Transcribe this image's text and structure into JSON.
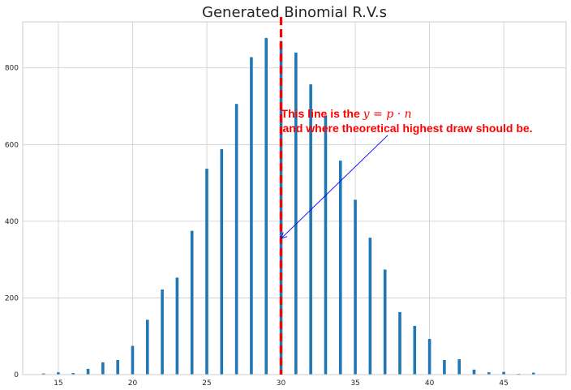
{
  "chart_data": {
    "type": "bar",
    "title": "Generated Binomial R.V.s",
    "xlabel": "",
    "ylabel": "",
    "xlim": [
      12.6,
      49.2
    ],
    "ylim": [
      0,
      920
    ],
    "x_ticks": [
      15,
      20,
      25,
      30,
      35,
      40,
      45
    ],
    "y_ticks": [
      0,
      200,
      400,
      600,
      800
    ],
    "grid": true,
    "bar_color": "#1f77b4",
    "x": [
      14,
      15,
      16,
      17,
      18,
      19,
      20,
      21,
      22,
      23,
      24,
      25,
      26,
      27,
      28,
      29,
      30,
      31,
      32,
      33,
      34,
      35,
      36,
      37,
      38,
      39,
      40,
      41,
      42,
      43,
      44,
      45,
      46,
      47
    ],
    "values": [
      3,
      6,
      4,
      15,
      32,
      38,
      75,
      143,
      222,
      253,
      375,
      537,
      588,
      706,
      828,
      878,
      870,
      840,
      757,
      676,
      558,
      456,
      357,
      274,
      163,
      127,
      93,
      38,
      40,
      13,
      6,
      7,
      2,
      5
    ],
    "reference_line": {
      "x": 30,
      "color": "#ff0000",
      "style": "dashed"
    },
    "annotation": {
      "line1_prefix": "This line is the ",
      "line1_math": "y = p · n",
      "line2": "and where theoretical highest draw should be.",
      "color": "#ff0000",
      "arrow_color": "#0000ff",
      "arrow_target": {
        "x": 30,
        "y": 355
      },
      "text_anchor": {
        "x": 30,
        "y": 660
      }
    }
  }
}
